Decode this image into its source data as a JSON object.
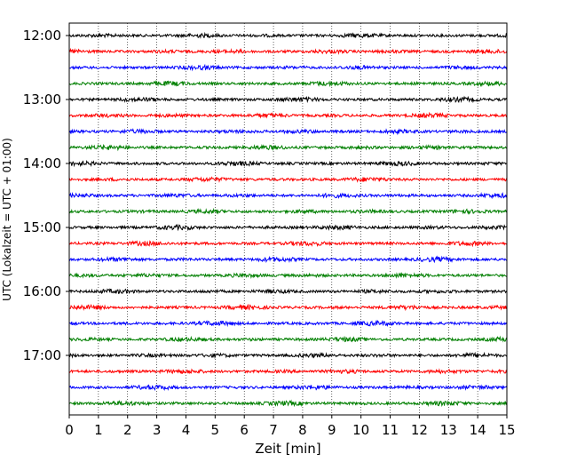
{
  "chart_data": {
    "type": "line",
    "title": "",
    "xlabel": "Zeit  [min]",
    "ylabel": "UTC (Lokalzeit = UTC + 01:00)",
    "xlim": [
      0,
      15
    ],
    "x_ticks": [
      "0",
      "1",
      "2",
      "3",
      "4",
      "5",
      "6",
      "7",
      "8",
      "9",
      "10",
      "11",
      "12",
      "13",
      "14",
      "15"
    ],
    "y_ticks": [
      "12:00",
      "13:00",
      "14:00",
      "15:00",
      "16:00",
      "17:00"
    ],
    "trace_start": "12:00",
    "trace_end": "17:45",
    "trace_interval_min": 15,
    "grid": true,
    "series_colors": [
      "#000000",
      "#ff0000",
      "#0000ff",
      "#007f00"
    ],
    "series": [
      {
        "start": "12:00",
        "color": "#000000"
      },
      {
        "start": "12:15",
        "color": "#ff0000"
      },
      {
        "start": "12:30",
        "color": "#0000ff"
      },
      {
        "start": "12:45",
        "color": "#007f00"
      },
      {
        "start": "13:00",
        "color": "#000000"
      },
      {
        "start": "13:15",
        "color": "#ff0000"
      },
      {
        "start": "13:30",
        "color": "#0000ff"
      },
      {
        "start": "13:45",
        "color": "#007f00"
      },
      {
        "start": "14:00",
        "color": "#000000"
      },
      {
        "start": "14:15",
        "color": "#ff0000"
      },
      {
        "start": "14:30",
        "color": "#0000ff"
      },
      {
        "start": "14:45",
        "color": "#007f00"
      },
      {
        "start": "15:00",
        "color": "#000000"
      },
      {
        "start": "15:15",
        "color": "#ff0000"
      },
      {
        "start": "15:30",
        "color": "#0000ff"
      },
      {
        "start": "15:45",
        "color": "#007f00"
      },
      {
        "start": "16:00",
        "color": "#000000"
      },
      {
        "start": "16:15",
        "color": "#ff0000"
      },
      {
        "start": "16:30",
        "color": "#0000ff"
      },
      {
        "start": "16:45",
        "color": "#007f00"
      },
      {
        "start": "17:00",
        "color": "#000000"
      },
      {
        "start": "17:15",
        "color": "#ff0000"
      },
      {
        "start": "17:30",
        "color": "#0000ff"
      },
      {
        "start": "17:45",
        "color": "#007f00"
      }
    ]
  }
}
